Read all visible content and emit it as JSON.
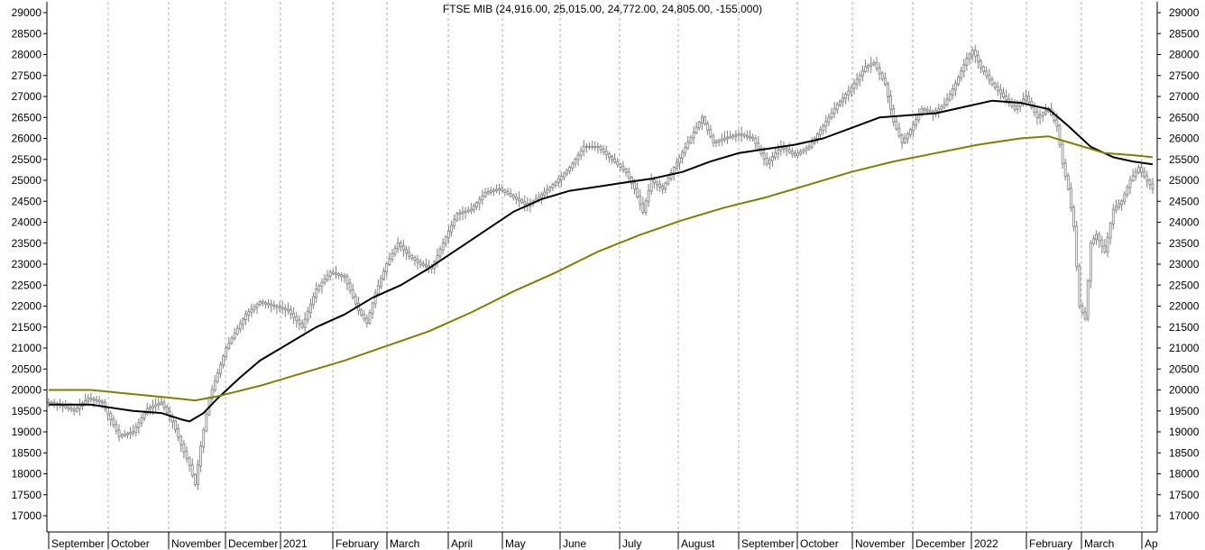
{
  "chart_data": {
    "type": "line",
    "title": "FTSE MIB (24,916.00, 25,015.00, 24,772.00, 24,805.00, -155.000)",
    "instrument": "FTSE MIB",
    "ohlc_readout": {
      "open": 24916,
      "high": 25015,
      "low": 24772,
      "close": 24805,
      "change": -155
    },
    "ylim": [
      16700,
      29200
    ],
    "y_ticks": [
      17000,
      17500,
      18000,
      18500,
      19000,
      19500,
      20000,
      20500,
      21000,
      21500,
      22000,
      22500,
      23000,
      23500,
      24000,
      24500,
      25000,
      25500,
      26000,
      26500,
      27000,
      27500,
      28000,
      28500,
      29000
    ],
    "y_tick_labels": [
      "17000",
      "17500",
      "18000",
      "18500",
      "19000",
      "19500",
      "20000",
      "20500",
      "21000",
      "21500",
      "22000",
      "22500",
      "23000",
      "23500",
      "24000",
      "24500",
      "25000",
      "25500",
      "26000",
      "26500",
      "27000",
      "27500",
      "28000",
      "28500",
      "29000"
    ],
    "x_month_labels": [
      "September",
      "October",
      "November",
      "December",
      "2021",
      "February",
      "March",
      "April",
      "May",
      "June",
      "July",
      "August",
      "September",
      "October",
      "November",
      "December",
      "2022",
      "February",
      "March",
      "Ap"
    ],
    "grid": "vertical dashed at month starts",
    "colors": {
      "price": "#7f7f7f",
      "ma_short": "#000000",
      "ma_long": "#808000",
      "grid": "#b0b0b0",
      "axis": "#000000"
    },
    "series": [
      {
        "role": "price",
        "points": [
          [
            0,
            19700
          ],
          [
            4,
            19650
          ],
          [
            9,
            19500
          ],
          [
            14,
            19800
          ],
          [
            19,
            19700
          ],
          [
            22,
            19300
          ],
          [
            25,
            18900
          ],
          [
            30,
            19000
          ],
          [
            35,
            19550
          ],
          [
            40,
            19700
          ],
          [
            44,
            19250
          ],
          [
            47,
            18700
          ],
          [
            50,
            18200
          ],
          [
            52,
            17750
          ],
          [
            54,
            18650
          ],
          [
            57,
            19800
          ],
          [
            60,
            20400
          ],
          [
            63,
            21000
          ],
          [
            66,
            21350
          ],
          [
            70,
            21800
          ],
          [
            75,
            22100
          ],
          [
            80,
            22000
          ],
          [
            85,
            21900
          ],
          [
            90,
            21500
          ],
          [
            95,
            22400
          ],
          [
            100,
            22800
          ],
          [
            105,
            22700
          ],
          [
            110,
            21900
          ],
          [
            113,
            21600
          ],
          [
            116,
            22300
          ],
          [
            120,
            23000
          ],
          [
            124,
            23500
          ],
          [
            128,
            23200
          ],
          [
            132,
            23000
          ],
          [
            136,
            22900
          ],
          [
            140,
            23500
          ],
          [
            145,
            24200
          ],
          [
            150,
            24300
          ],
          [
            155,
            24700
          ],
          [
            160,
            24800
          ],
          [
            165,
            24600
          ],
          [
            170,
            24400
          ],
          [
            175,
            24650
          ],
          [
            180,
            24950
          ],
          [
            185,
            25300
          ],
          [
            190,
            25800
          ],
          [
            195,
            25800
          ],
          [
            200,
            25500
          ],
          [
            205,
            25200
          ],
          [
            208,
            24800
          ],
          [
            211,
            24250
          ],
          [
            214,
            25000
          ],
          [
            218,
            24800
          ],
          [
            222,
            25300
          ],
          [
            227,
            25900
          ],
          [
            232,
            26500
          ],
          [
            236,
            25900
          ],
          [
            240,
            26000
          ],
          [
            245,
            26100
          ],
          [
            250,
            26000
          ],
          [
            255,
            25400
          ],
          [
            260,
            25800
          ],
          [
            265,
            25600
          ],
          [
            270,
            25800
          ],
          [
            275,
            26300
          ],
          [
            280,
            26800
          ],
          [
            285,
            27200
          ],
          [
            290,
            27700
          ],
          [
            293,
            27800
          ],
          [
            297,
            27300
          ],
          [
            300,
            26400
          ],
          [
            303,
            25900
          ],
          [
            306,
            26200
          ],
          [
            310,
            26700
          ],
          [
            314,
            26600
          ],
          [
            318,
            26800
          ],
          [
            322,
            27300
          ],
          [
            326,
            27900
          ],
          [
            328,
            28100
          ],
          [
            331,
            27700
          ],
          [
            335,
            27300
          ],
          [
            339,
            27000
          ],
          [
            343,
            26700
          ],
          [
            347,
            27000
          ],
          [
            351,
            26500
          ],
          [
            355,
            26700
          ],
          [
            358,
            26300
          ],
          [
            360,
            25400
          ],
          [
            362,
            24800
          ],
          [
            364,
            23900
          ],
          [
            366,
            22000
          ],
          [
            368,
            21700
          ],
          [
            370,
            23500
          ],
          [
            372,
            23700
          ],
          [
            375,
            23300
          ],
          [
            378,
            24300
          ],
          [
            381,
            24500
          ],
          [
            384,
            25000
          ],
          [
            387,
            25300
          ],
          [
            390,
            25000
          ],
          [
            392,
            24805
          ]
        ]
      },
      {
        "role": "ma_short",
        "points": [
          [
            0,
            19650
          ],
          [
            15,
            19650
          ],
          [
            30,
            19500
          ],
          [
            40,
            19450
          ],
          [
            47,
            19300
          ],
          [
            50,
            19250
          ],
          [
            55,
            19450
          ],
          [
            60,
            19800
          ],
          [
            68,
            20300
          ],
          [
            75,
            20700
          ],
          [
            85,
            21100
          ],
          [
            95,
            21500
          ],
          [
            105,
            21800
          ],
          [
            115,
            22200
          ],
          [
            125,
            22500
          ],
          [
            135,
            22900
          ],
          [
            145,
            23350
          ],
          [
            155,
            23800
          ],
          [
            165,
            24250
          ],
          [
            175,
            24550
          ],
          [
            185,
            24750
          ],
          [
            195,
            24850
          ],
          [
            205,
            24950
          ],
          [
            215,
            25050
          ],
          [
            225,
            25200
          ],
          [
            235,
            25450
          ],
          [
            245,
            25650
          ],
          [
            255,
            25750
          ],
          [
            265,
            25850
          ],
          [
            275,
            26000
          ],
          [
            285,
            26250
          ],
          [
            295,
            26500
          ],
          [
            305,
            26550
          ],
          [
            315,
            26600
          ],
          [
            325,
            26750
          ],
          [
            335,
            26900
          ],
          [
            345,
            26850
          ],
          [
            355,
            26700
          ],
          [
            362,
            26300
          ],
          [
            370,
            25800
          ],
          [
            378,
            25550
          ],
          [
            385,
            25450
          ],
          [
            392,
            25380
          ]
        ]
      },
      {
        "role": "ma_long",
        "points": [
          [
            0,
            20000
          ],
          [
            15,
            20000
          ],
          [
            30,
            19900
          ],
          [
            45,
            19800
          ],
          [
            52,
            19750
          ],
          [
            60,
            19850
          ],
          [
            75,
            20100
          ],
          [
            90,
            20400
          ],
          [
            105,
            20700
          ],
          [
            120,
            21050
          ],
          [
            135,
            21400
          ],
          [
            150,
            21850
          ],
          [
            165,
            22350
          ],
          [
            180,
            22800
          ],
          [
            195,
            23300
          ],
          [
            210,
            23700
          ],
          [
            225,
            24050
          ],
          [
            240,
            24350
          ],
          [
            255,
            24600
          ],
          [
            270,
            24900
          ],
          [
            285,
            25200
          ],
          [
            300,
            25450
          ],
          [
            315,
            25650
          ],
          [
            330,
            25850
          ],
          [
            345,
            26000
          ],
          [
            355,
            26050
          ],
          [
            365,
            25850
          ],
          [
            375,
            25650
          ],
          [
            385,
            25600
          ],
          [
            392,
            25550
          ]
        ]
      }
    ]
  }
}
